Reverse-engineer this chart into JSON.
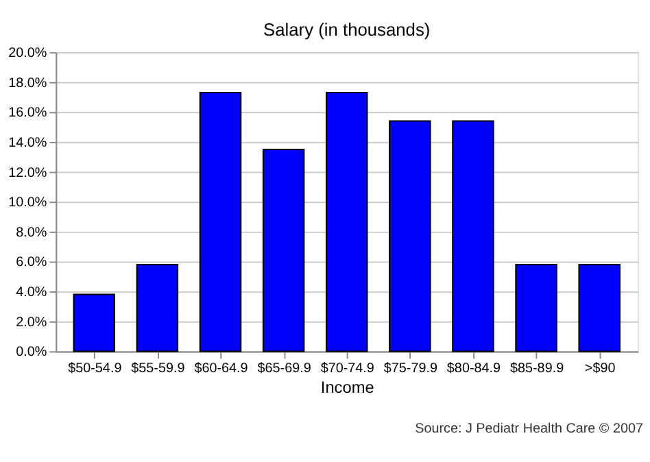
{
  "chart_data": {
    "type": "bar",
    "title": "Salary  (in thousands)",
    "xlabel": "Income",
    "categories": [
      "$50-54.9",
      "$55-59.9",
      "$60-64.9",
      "$65-69.9",
      "$70-74.9",
      "$75-79.9",
      "$80-84.9",
      "$85-89.9",
      ">$90"
    ],
    "values": [
      3.8,
      5.8,
      17.3,
      13.5,
      17.3,
      15.4,
      15.4,
      5.8,
      5.8
    ],
    "color": "#0000ff",
    "ylim": [
      0,
      20
    ],
    "yticks": [
      {
        "value": 0,
        "label": "0.0%"
      },
      {
        "value": 2,
        "label": "2.0%"
      },
      {
        "value": 4,
        "label": "4.0%"
      },
      {
        "value": 6,
        "label": "6.0%"
      },
      {
        "value": 8,
        "label": "8.0%"
      },
      {
        "value": 10,
        "label": "10.0%"
      },
      {
        "value": 12,
        "label": "12.0%"
      },
      {
        "value": 14,
        "label": "14.0%"
      },
      {
        "value": 16,
        "label": "16.0%"
      },
      {
        "value": 18,
        "label": "18.0%"
      },
      {
        "value": 20,
        "label": "20.0%"
      }
    ],
    "grid": "y",
    "annotations": [
      "Source: J Pediatr Health Care © 2007"
    ]
  }
}
